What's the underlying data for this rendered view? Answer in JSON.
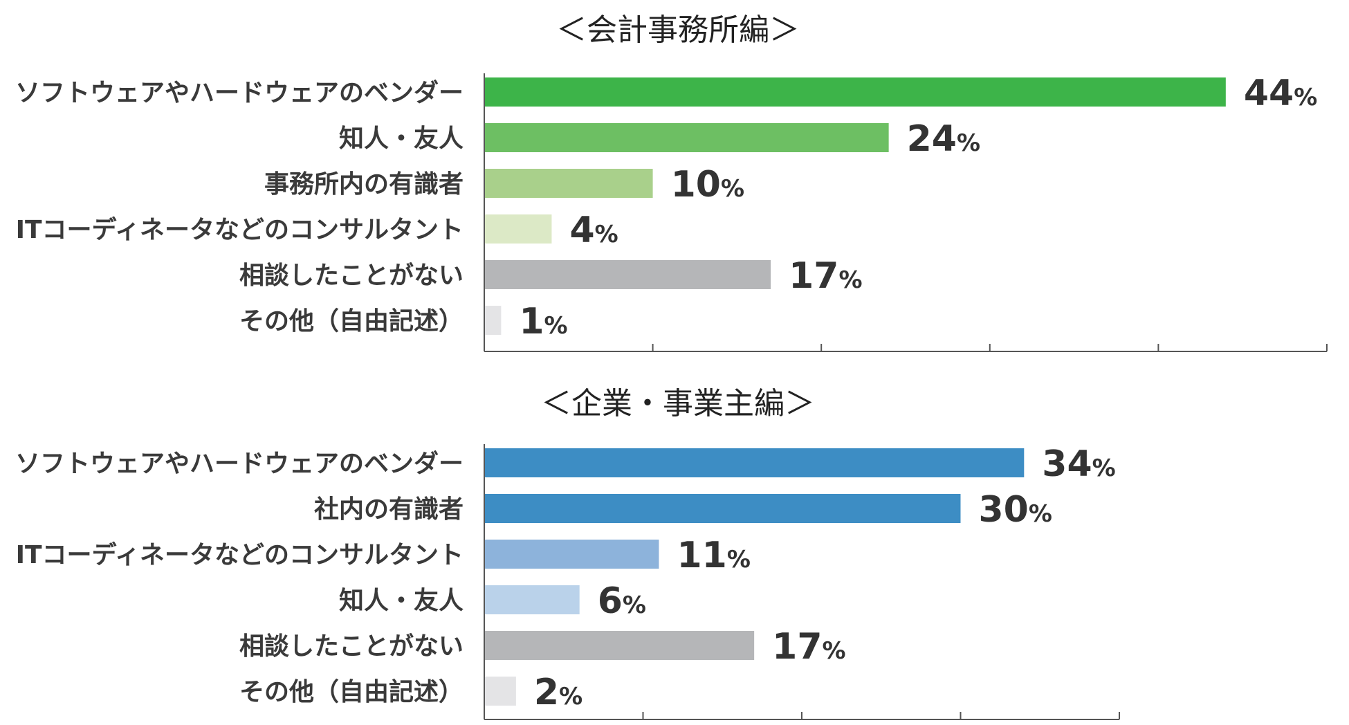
{
  "chart_data": [
    {
      "type": "bar",
      "orientation": "horizontal",
      "title": "＜会計事務所編＞",
      "categories": [
        "ソフトウェアやハードウェアのベンダー",
        "知人・友人",
        "事務所内の有識者",
        "ITコーディネータなどのコンサルタント",
        "相談したことがない",
        "その他（自由記述）"
      ],
      "values": [
        44,
        24,
        10,
        4,
        17,
        1
      ],
      "value_suffix": "%",
      "colors": [
        "#3db449",
        "#6dbf63",
        "#a9d08b",
        "#dce9c6",
        "#b5b6b8",
        "#e4e4e6"
      ],
      "xlim": [
        0,
        50
      ],
      "grid": false,
      "legend": "none"
    },
    {
      "type": "bar",
      "orientation": "horizontal",
      "title": "＜企業・事業主編＞",
      "categories": [
        "ソフトウェアやハードウェアのベンダー",
        "社内の有識者",
        "ITコーディネータなどのコンサルタント",
        "知人・友人",
        "相談したことがない",
        "その他（自由記述）"
      ],
      "values": [
        34,
        30,
        11,
        6,
        17,
        2
      ],
      "value_suffix": "%",
      "colors": [
        "#3d8dc4",
        "#3d8dc4",
        "#8db3db",
        "#bad2ea",
        "#b5b6b8",
        "#e4e4e6"
      ],
      "xlim": [
        0,
        40
      ],
      "grid": false,
      "legend": "none"
    }
  ]
}
